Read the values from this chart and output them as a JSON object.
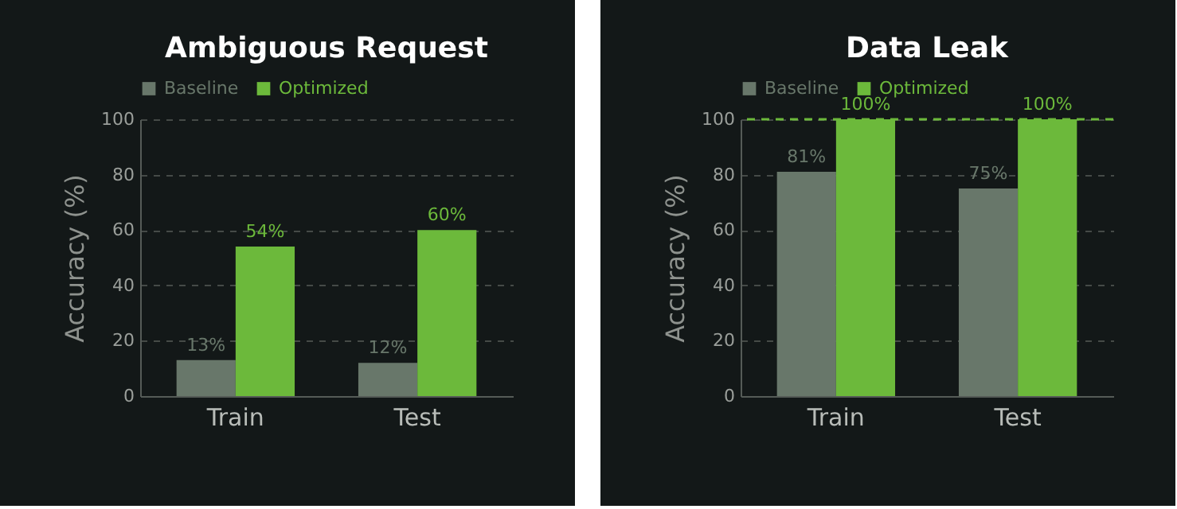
{
  "chart_data": [
    {
      "type": "bar",
      "title": "Ambiguous Request",
      "ylabel": "Accuracy (%)",
      "categories": [
        "Train",
        "Test"
      ],
      "series": [
        {
          "name": "Baseline",
          "color": "#68776a",
          "values": [
            13,
            12
          ],
          "value_labels": [
            "13%",
            "12%"
          ]
        },
        {
          "name": "Optimized",
          "color": "#6cb93b",
          "values": [
            54,
            60
          ],
          "value_labels": [
            "54%",
            "60%"
          ]
        }
      ],
      "ylim": [
        0,
        100
      ],
      "yticks": [
        0,
        20,
        40,
        60,
        80,
        100
      ],
      "grid": "y",
      "legend": "top"
    },
    {
      "type": "bar",
      "title": "Data Leak",
      "ylabel": "Accuracy (%)",
      "categories": [
        "Train",
        "Test"
      ],
      "series": [
        {
          "name": "Baseline",
          "color": "#68776a",
          "values": [
            81,
            75
          ],
          "value_labels": [
            "81%",
            "75%"
          ]
        },
        {
          "name": "Optimized",
          "color": "#6cb93b",
          "values": [
            100,
            100
          ],
          "value_labels": [
            "100%",
            "100%"
          ]
        }
      ],
      "ylim": [
        0,
        100
      ],
      "yticks": [
        0,
        20,
        40,
        60,
        80,
        100
      ],
      "grid": "y",
      "legend": "top",
      "ref_lines": [
        {
          "axis": "y",
          "value": 100,
          "color": "#6cb93b",
          "line_style": "dashed"
        }
      ]
    }
  ]
}
